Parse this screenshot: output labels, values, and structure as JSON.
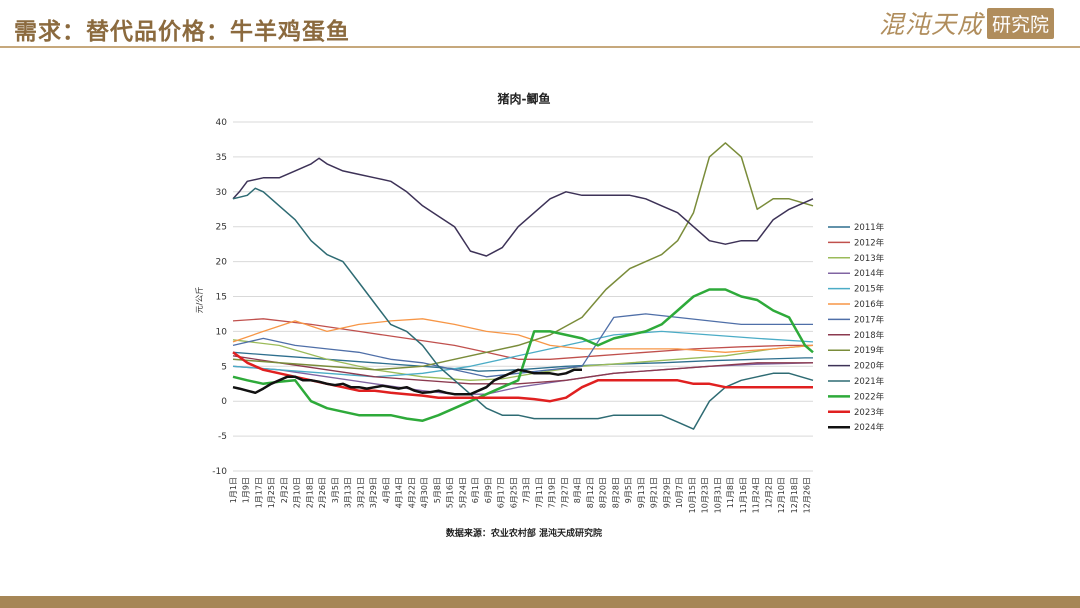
{
  "header": {
    "title": "需求：替代品价格：牛羊鸡蛋鱼"
  },
  "logo": {
    "script_text": "混沌天成",
    "box_text": "研究院"
  },
  "source_note": "数据来源：农业农村部 混沌天成研究院",
  "colors": {
    "accent": "#8b6a3e",
    "rule": "#c6a87c",
    "footer": "#a68656"
  },
  "chart_data": {
    "type": "line",
    "title": "猪肉-鲫鱼",
    "xlabel": "",
    "ylabel": "元/公斤",
    "ylim": [
      -10,
      40
    ],
    "yticks": [
      -10,
      -5,
      0,
      5,
      10,
      15,
      20,
      25,
      30,
      35,
      40
    ],
    "grid": true,
    "legend_position": "right",
    "x_day_span": [
      1,
      365
    ],
    "x_tick_labels": [
      "1月1日",
      "1月9日",
      "1月17日",
      "1月25日",
      "2月2日",
      "2月10日",
      "2月18日",
      "2月26日",
      "3月5日",
      "3月13日",
      "3月21日",
      "3月29日",
      "4月6日",
      "4月14日",
      "4月22日",
      "4月30日",
      "5月8日",
      "5月16日",
      "5月24日",
      "6月1日",
      "6月9日",
      "6月17日",
      "6月25日",
      "7月3日",
      "7月11日",
      "7月19日",
      "7月27日",
      "8月4日",
      "8月12日",
      "8月20日",
      "8月28日",
      "9月5日",
      "9月13日",
      "9月21日",
      "9月29日",
      "10月7日",
      "10月15日",
      "10月23日",
      "10月31日",
      "11月8日",
      "11月16日",
      "11月24日",
      "12月2日",
      "12月10日",
      "12月18日",
      "12月26日"
    ],
    "series": [
      {
        "name": "2011年",
        "color": "#2e6f8e",
        "width": 1.3,
        "x": [
          1,
          30,
          60,
          90,
          120,
          150,
          155,
          180,
          210,
          240,
          270,
          300,
          330,
          360,
          365
        ],
        "y": [
          7,
          6.5,
          6,
          5.5,
          5,
          4.5,
          4.3,
          4.5,
          5,
          5.3,
          5.5,
          5.8,
          6,
          6.2,
          6.2
        ]
      },
      {
        "name": "2012年",
        "color": "#c0504d",
        "width": 1.3,
        "x": [
          1,
          20,
          50,
          80,
          110,
          140,
          160,
          180,
          200,
          230,
          260,
          290,
          320,
          350,
          365
        ],
        "y": [
          11.5,
          11.8,
          11,
          10,
          9,
          8,
          7,
          6,
          6,
          6.5,
          7,
          7.5,
          7.8,
          8,
          8
        ]
      },
      {
        "name": "2013年",
        "color": "#9bbb59",
        "width": 1.3,
        "x": [
          1,
          30,
          60,
          90,
          120,
          150,
          170,
          190,
          220,
          250,
          280,
          310,
          340,
          365
        ],
        "y": [
          8.8,
          8,
          6,
          4.5,
          3.5,
          3,
          3.2,
          4,
          5,
          5.5,
          6,
          6.5,
          7.5,
          8
        ]
      },
      {
        "name": "2014年",
        "color": "#8064a2",
        "width": 1.3,
        "x": [
          1,
          30,
          60,
          90,
          120,
          140,
          160,
          180,
          210,
          240,
          270,
          300,
          330,
          365
        ],
        "y": [
          5,
          4.5,
          3.5,
          2.5,
          1.5,
          1,
          1,
          2,
          3,
          4,
          4.5,
          5,
          5.3,
          5.5
        ]
      },
      {
        "name": "2015年",
        "color": "#4bacc6",
        "width": 1.3,
        "x": [
          1,
          30,
          60,
          90,
          120,
          150,
          180,
          210,
          240,
          270,
          300,
          330,
          365
        ],
        "y": [
          5,
          4.5,
          4,
          3.5,
          4,
          5,
          6.5,
          8,
          9.5,
          10,
          9.5,
          9,
          8.5
        ]
      },
      {
        "name": "2016年",
        "color": "#f79646",
        "width": 1.3,
        "x": [
          1,
          20,
          40,
          60,
          80,
          100,
          120,
          140,
          160,
          180,
          200,
          220,
          250,
          280,
          310,
          340,
          365
        ],
        "y": [
          8.5,
          10,
          11.5,
          10,
          11,
          11.5,
          11.8,
          11,
          10,
          9.5,
          8,
          7.5,
          7.5,
          7.5,
          7,
          7.5,
          8
        ]
      },
      {
        "name": "2017年",
        "color": "#4f6fa8",
        "width": 1.3,
        "x": [
          1,
          20,
          40,
          60,
          80,
          100,
          120,
          140,
          160,
          180,
          200,
          220,
          240,
          260,
          280,
          300,
          320,
          340,
          365
        ],
        "y": [
          8,
          9,
          8,
          7.5,
          7,
          6,
          5.5,
          4.5,
          3.5,
          4,
          4.5,
          5,
          12,
          12.5,
          12,
          11.5,
          11,
          11,
          11
        ]
      },
      {
        "name": "2018年",
        "color": "#8b3a4f",
        "width": 1.3,
        "x": [
          1,
          30,
          60,
          90,
          120,
          150,
          180,
          210,
          240,
          270,
          300,
          330,
          365
        ],
        "y": [
          6.5,
          5.5,
          4.5,
          3.5,
          3,
          2.5,
          2.5,
          3,
          4,
          4.5,
          5,
          5.5,
          5.5
        ]
      },
      {
        "name": "2019年",
        "color": "#7a8c3a",
        "width": 1.5,
        "x": [
          1,
          30,
          60,
          90,
          120,
          150,
          180,
          200,
          220,
          235,
          250,
          260,
          270,
          280,
          290,
          300,
          310,
          320,
          330,
          340,
          350,
          365
        ],
        "y": [
          6,
          5.5,
          5,
          4.5,
          5,
          6.5,
          8,
          9.5,
          12,
          16,
          19,
          20,
          21,
          23,
          27,
          35,
          37,
          35,
          27.5,
          29,
          29,
          28
        ]
      },
      {
        "name": "2020年",
        "color": "#3d3257",
        "width": 1.5,
        "x": [
          1,
          5,
          10,
          20,
          30,
          40,
          50,
          55,
          60,
          70,
          80,
          90,
          100,
          110,
          120,
          130,
          140,
          150,
          160,
          170,
          180,
          190,
          200,
          210,
          220,
          230,
          240,
          250,
          260,
          270,
          280,
          290,
          300,
          310,
          320,
          330,
          340,
          350,
          365
        ],
        "y": [
          29,
          30,
          31.5,
          32,
          32,
          33,
          34,
          34.8,
          34,
          33,
          32.5,
          32,
          31.5,
          30,
          28,
          26.5,
          25,
          21.5,
          20.8,
          22,
          25,
          27,
          29,
          30,
          29.5,
          29.5,
          29.5,
          29.5,
          29,
          28,
          27,
          25,
          23,
          22.5,
          23,
          23,
          26,
          27.5,
          29
        ]
      },
      {
        "name": "2021年",
        "color": "#2e6b73",
        "width": 1.5,
        "x": [
          1,
          10,
          15,
          20,
          30,
          40,
          50,
          60,
          70,
          80,
          90,
          100,
          110,
          120,
          130,
          140,
          150,
          160,
          170,
          180,
          190,
          200,
          210,
          220,
          230,
          240,
          250,
          260,
          270,
          280,
          290,
          300,
          310,
          320,
          330,
          340,
          350,
          365
        ],
        "y": [
          29,
          29.5,
          30.5,
          30,
          28,
          26,
          23,
          21,
          20,
          17,
          14,
          11,
          10,
          8,
          5,
          3,
          1,
          -1,
          -2,
          -2,
          -2.5,
          -2.5,
          -2.5,
          -2.5,
          -2.5,
          -2,
          -2,
          -2,
          -2,
          -3,
          -4,
          0,
          2,
          3,
          3.5,
          4,
          4,
          3
        ]
      },
      {
        "name": "2022年",
        "color": "#2eaa3a",
        "width": 2.5,
        "x": [
          1,
          10,
          20,
          30,
          40,
          50,
          60,
          70,
          80,
          90,
          100,
          110,
          120,
          130,
          140,
          150,
          160,
          170,
          180,
          190,
          200,
          210,
          220,
          230,
          240,
          250,
          260,
          270,
          280,
          290,
          300,
          310,
          320,
          330,
          340,
          350,
          360,
          365
        ],
        "y": [
          3.5,
          3,
          2.5,
          2.8,
          3,
          0,
          -1,
          -1.5,
          -2,
          -2,
          -2,
          -2.5,
          -2.8,
          -2,
          -1,
          0,
          1,
          2,
          3,
          10,
          10,
          9.5,
          9,
          8,
          9,
          9.5,
          10,
          11,
          13,
          15,
          16,
          16,
          15,
          14.5,
          13,
          12,
          8,
          7
        ]
      },
      {
        "name": "2023年",
        "color": "#e02020",
        "width": 2.5,
        "x": [
          1,
          10,
          20,
          30,
          40,
          50,
          60,
          70,
          80,
          90,
          100,
          110,
          120,
          130,
          140,
          150,
          160,
          170,
          180,
          190,
          200,
          210,
          220,
          230,
          240,
          250,
          260,
          270,
          280,
          290,
          300,
          310,
          320,
          330,
          340,
          350,
          360,
          365
        ],
        "y": [
          7,
          5.5,
          4.5,
          4,
          3.5,
          3,
          2.5,
          2,
          1.5,
          1.5,
          1.2,
          1,
          0.8,
          0.5,
          0.5,
          0.5,
          0.5,
          0.5,
          0.5,
          0.3,
          0,
          0.5,
          2,
          3,
          3,
          3,
          3,
          3,
          3,
          2.5,
          2.5,
          2,
          2,
          2,
          2,
          2,
          2,
          2
        ]
      },
      {
        "name": "2024年",
        "color": "#111111",
        "width": 2.5,
        "x": [
          1,
          5,
          10,
          15,
          20,
          25,
          30,
          35,
          40,
          45,
          50,
          55,
          60,
          65,
          70,
          75,
          80,
          85,
          90,
          95,
          100,
          105,
          110,
          115,
          120,
          125,
          130,
          135,
          140,
          145,
          150,
          155,
          160,
          165,
          170,
          175,
          180,
          185,
          190,
          195,
          200,
          205,
          210,
          215,
          220
        ],
        "y": [
          2,
          1.8,
          1.5,
          1.2,
          1.8,
          2.5,
          3,
          3.5,
          3.5,
          3,
          3,
          2.8,
          2.5,
          2.3,
          2.5,
          2,
          2,
          1.8,
          2,
          2.2,
          2,
          1.8,
          2,
          1.5,
          1.2,
          1.3,
          1.5,
          1.2,
          1,
          1,
          1,
          1.5,
          2,
          3,
          3.5,
          4,
          4.5,
          4.3,
          4,
          4,
          4,
          3.8,
          4,
          4.5,
          4.5
        ]
      }
    ]
  }
}
